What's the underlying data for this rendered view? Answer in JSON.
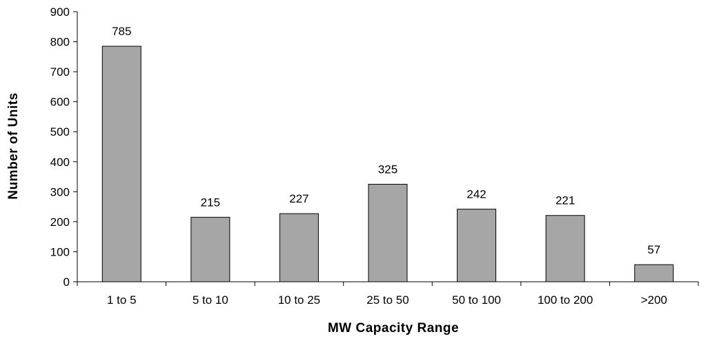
{
  "chart_data": {
    "type": "bar",
    "title": "",
    "xlabel": "MW Capacity Range",
    "ylabel": "Number of Units",
    "categories": [
      "1 to 5",
      "5 to 10",
      "10 to 25",
      "25 to 50",
      "50 to 100",
      "100 to 200",
      ">200"
    ],
    "values": [
      785,
      215,
      227,
      325,
      242,
      221,
      57
    ],
    "data_labels": [
      "785",
      "215",
      "227",
      "325",
      "242",
      "221",
      "57"
    ],
    "ylim": [
      0,
      900
    ],
    "yticks": [
      0,
      100,
      200,
      300,
      400,
      500,
      600,
      700,
      800,
      900
    ],
    "ytick_labels": [
      "0",
      "100",
      "200",
      "300",
      "400",
      "500",
      "600",
      "700",
      "800",
      "900"
    ],
    "grid": false,
    "legend": "none",
    "colors": {
      "bar_fill": "#a6a6a6",
      "bar_stroke": "#000000",
      "axis": "#000000"
    }
  }
}
